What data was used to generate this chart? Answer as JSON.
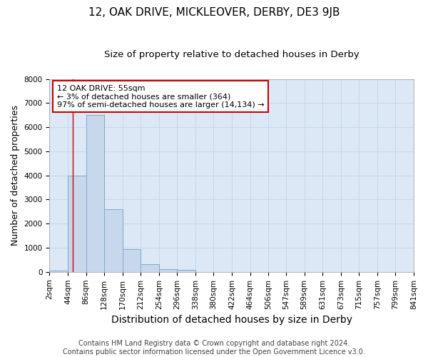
{
  "title": "12, OAK DRIVE, MICKLEOVER, DERBY, DE3 9JB",
  "subtitle": "Size of property relative to detached houses in Derby",
  "xlabel": "Distribution of detached houses by size in Derby",
  "ylabel": "Number of detached properties",
  "bin_edges": [
    2,
    44,
    86,
    128,
    170,
    212,
    254,
    296,
    338,
    380,
    422,
    464,
    506,
    547,
    589,
    631,
    673,
    715,
    757,
    799,
    841
  ],
  "bar_heights": [
    50,
    4000,
    6500,
    2600,
    950,
    320,
    120,
    70,
    0,
    0,
    0,
    0,
    0,
    0,
    0,
    0,
    0,
    0,
    0,
    0
  ],
  "bar_color": "#c8d8ec",
  "bar_edge_color": "#7aabcc",
  "vertical_line_x": 55,
  "vertical_line_color": "#cc0000",
  "annotation_line1": "12 OAK DRIVE: 55sqm",
  "annotation_line2": "← 3% of detached houses are smaller (364)",
  "annotation_line3": "97% of semi-detached houses are larger (14,134) →",
  "annotation_box_color": "#cc0000",
  "ylim": [
    0,
    8000
  ],
  "yticks": [
    0,
    1000,
    2000,
    3000,
    4000,
    5000,
    6000,
    7000,
    8000
  ],
  "tick_labels": [
    "2sqm",
    "44sqm",
    "86sqm",
    "128sqm",
    "170sqm",
    "212sqm",
    "254sqm",
    "296sqm",
    "338sqm",
    "380sqm",
    "422sqm",
    "464sqm",
    "506sqm",
    "547sqm",
    "589sqm",
    "631sqm",
    "673sqm",
    "715sqm",
    "757sqm",
    "799sqm",
    "841sqm"
  ],
  "grid_color": "#c8d8ec",
  "background_color": "#dce8f5",
  "footer_line1": "Contains HM Land Registry data © Crown copyright and database right 2024.",
  "footer_line2": "Contains public sector information licensed under the Open Government Licence v3.0.",
  "title_fontsize": 11,
  "subtitle_fontsize": 9.5,
  "xlabel_fontsize": 10,
  "ylabel_fontsize": 9,
  "tick_fontsize": 7.5,
  "footer_fontsize": 7,
  "annotation_fontsize": 8
}
